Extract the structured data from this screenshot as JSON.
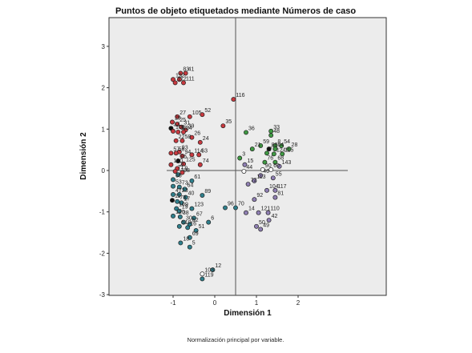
{
  "chart_data": {
    "type": "scatter",
    "title": "Puntos de objeto etiquetados mediante Números de caso",
    "xlabel": "Dimensión 1",
    "ylabel": "Dimensión 2",
    "footnote": "Normalización principal por variable.",
    "xlim": [
      -3,
      3
    ],
    "ylim": [
      -3,
      3.6
    ],
    "x_ticks": [
      -1,
      0,
      1,
      2
    ],
    "y_ticks": [
      -3,
      -2,
      -1,
      0,
      1,
      2,
      3
    ],
    "reference_lines": {
      "x": 0.5,
      "y": 0
    },
    "grid": false,
    "colors": {
      "plot_bg": "#ececec",
      "red": "#c8393f",
      "green": "#3f9a43",
      "teal": "#2f7f8c",
      "purple": "#8f7fb3",
      "hollow": "#ffffff",
      "black": "#111111"
    },
    "points": [
      {
        "label": "83",
        "x": -0.82,
        "y": 2.35,
        "color": "red"
      },
      {
        "label": "41",
        "x": -0.7,
        "y": 2.35,
        "color": "red"
      },
      {
        "label": "13",
        "x": -1.0,
        "y": 2.2,
        "color": "red"
      },
      {
        "label": "2",
        "x": -0.85,
        "y": 2.2,
        "color": "red"
      },
      {
        "label": "112",
        "x": -0.95,
        "y": 2.12,
        "color": "red"
      },
      {
        "label": "111",
        "x": -0.75,
        "y": 2.12,
        "color": "red"
      },
      {
        "label": "116",
        "x": 0.45,
        "y": 1.72,
        "color": "red"
      },
      {
        "label": "27",
        "x": -0.9,
        "y": 1.3,
        "color": "red"
      },
      {
        "label": "105",
        "x": -0.6,
        "y": 1.3,
        "color": "red"
      },
      {
        "label": "52",
        "x": -0.3,
        "y": 1.35,
        "color": "red"
      },
      {
        "label": "29",
        "x": -1.02,
        "y": 1.17,
        "color": "red"
      },
      {
        "label": "25",
        "x": -0.9,
        "y": 1.12,
        "color": "red"
      },
      {
        "label": "35",
        "x": 0.2,
        "y": 1.08,
        "color": "red"
      },
      {
        "label": "31",
        "x": -0.8,
        "y": 1.05,
        "color": "red"
      },
      {
        "label": "37",
        "x": -1.05,
        "y": 1.02,
        "color": "black"
      },
      {
        "label": "39",
        "x": -0.7,
        "y": 0.98,
        "color": "red"
      },
      {
        "label": "106",
        "x": -1.0,
        "y": 0.95,
        "color": "red"
      },
      {
        "label": "32",
        "x": -0.88,
        "y": 0.93,
        "color": "red"
      },
      {
        "label": "34",
        "x": -0.75,
        "y": 0.93,
        "color": "red"
      },
      {
        "label": "36",
        "x": 0.75,
        "y": 0.92,
        "color": "green"
      },
      {
        "label": "33",
        "x": 1.35,
        "y": 0.95,
        "color": "green"
      },
      {
        "label": "48",
        "x": 1.35,
        "y": 0.85,
        "color": "green"
      },
      {
        "label": "26",
        "x": -0.55,
        "y": 0.8,
        "color": "red"
      },
      {
        "label": "22",
        "x": -0.93,
        "y": 0.72,
        "color": "red"
      },
      {
        "label": "58",
        "x": -0.78,
        "y": 0.72,
        "color": "red"
      },
      {
        "label": "24",
        "x": -0.35,
        "y": 0.68,
        "color": "red"
      },
      {
        "label": "59",
        "x": 1.1,
        "y": 0.6,
        "color": "green"
      },
      {
        "label": "8",
        "x": 1.45,
        "y": 0.6,
        "color": "green"
      },
      {
        "label": "54",
        "x": 1.6,
        "y": 0.6,
        "color": "green"
      },
      {
        "label": "21",
        "x": 0.9,
        "y": 0.52,
        "color": "green"
      },
      {
        "label": "88",
        "x": 1.3,
        "y": 0.52,
        "color": "black"
      },
      {
        "label": "64",
        "x": 1.45,
        "y": 0.52,
        "color": "green"
      },
      {
        "label": "28",
        "x": 1.78,
        "y": 0.52,
        "color": "green"
      },
      {
        "label": "93",
        "x": -0.85,
        "y": 0.45,
        "color": "red"
      },
      {
        "label": "57",
        "x": -1.05,
        "y": 0.42,
        "color": "red"
      },
      {
        "label": "56",
        "x": -0.93,
        "y": 0.42,
        "color": "red"
      },
      {
        "label": "7",
        "x": 1.25,
        "y": 0.42,
        "color": "green"
      },
      {
        "label": "124",
        "x": 1.42,
        "y": 0.4,
        "color": "green"
      },
      {
        "label": "115",
        "x": 1.62,
        "y": 0.4,
        "color": "green"
      },
      {
        "label": "94",
        "x": -0.78,
        "y": 0.35,
        "color": "red"
      },
      {
        "label": "114",
        "x": -0.55,
        "y": 0.38,
        "color": "red"
      },
      {
        "label": "63",
        "x": -0.38,
        "y": 0.38,
        "color": "red"
      },
      {
        "label": "3",
        "x": 0.6,
        "y": 0.3,
        "color": "green"
      },
      {
        "label": "76",
        "x": 1.2,
        "y": 0.2,
        "color": "green"
      },
      {
        "label": "68",
        "x": 1.45,
        "y": 0.2,
        "color": "green"
      },
      {
        "label": "86",
        "x": -0.88,
        "y": 0.23,
        "color": "black"
      },
      {
        "label": "125",
        "x": -0.75,
        "y": 0.16,
        "color": "red"
      },
      {
        "label": "100",
        "x": -1.05,
        "y": 0.14,
        "color": "red"
      },
      {
        "label": "74",
        "x": -0.35,
        "y": 0.14,
        "color": "red"
      },
      {
        "label": "15",
        "x": 0.72,
        "y": 0.14,
        "color": "purple"
      },
      {
        "label": "143",
        "x": 1.55,
        "y": 0.1,
        "color": "purple"
      },
      {
        "label": "20",
        "x": -0.9,
        "y": 0.05,
        "color": "red"
      },
      {
        "label": "71",
        "x": -0.95,
        "y": -0.02,
        "color": "red"
      },
      {
        "label": "44",
        "x": 0.7,
        "y": -0.02,
        "color": "hollow"
      },
      {
        "label": "90",
        "x": 1.15,
        "y": 0.02,
        "color": "hollow"
      },
      {
        "label": "60",
        "x": 1.35,
        "y": 0.02,
        "color": "hollow"
      },
      {
        "label": "108",
        "x": -0.88,
        "y": -0.1,
        "color": "teal"
      },
      {
        "label": "9",
        "x": -0.78,
        "y": -0.05,
        "color": "red"
      },
      {
        "label": "46",
        "x": 1.1,
        "y": -0.12,
        "color": "purple"
      },
      {
        "label": "55",
        "x": 1.4,
        "y": -0.18,
        "color": "purple"
      },
      {
        "label": "65",
        "x": -1.0,
        "y": -0.22,
        "color": "teal"
      },
      {
        "label": "61",
        "x": -0.55,
        "y": -0.25,
        "color": "teal"
      },
      {
        "label": "113",
        "x": 0.95,
        "y": -0.25,
        "color": "purple"
      },
      {
        "label": "72",
        "x": 0.8,
        "y": -0.33,
        "color": "purple"
      },
      {
        "label": "53",
        "x": -1.0,
        "y": -0.38,
        "color": "teal"
      },
      {
        "label": "73",
        "x": -0.85,
        "y": -0.4,
        "color": "teal"
      },
      {
        "label": "64",
        "x": -0.72,
        "y": -0.45,
        "color": "teal"
      },
      {
        "label": "104",
        "x": 1.25,
        "y": -0.48,
        "color": "purple"
      },
      {
        "label": "117",
        "x": 1.45,
        "y": -0.48,
        "color": "purple"
      },
      {
        "label": "47",
        "x": -1.0,
        "y": -0.58,
        "color": "teal"
      },
      {
        "label": "23",
        "x": -0.85,
        "y": -0.58,
        "color": "teal"
      },
      {
        "label": "40",
        "x": -0.7,
        "y": -0.65,
        "color": "teal"
      },
      {
        "label": "89",
        "x": -0.3,
        "y": -0.6,
        "color": "teal"
      },
      {
        "label": "81",
        "x": 1.45,
        "y": -0.65,
        "color": "purple"
      },
      {
        "label": "92",
        "x": 0.95,
        "y": -0.7,
        "color": "purple"
      },
      {
        "label": "11",
        "x": -1.02,
        "y": -0.72,
        "color": "black"
      },
      {
        "label": "77",
        "x": -0.9,
        "y": -0.75,
        "color": "teal"
      },
      {
        "label": "17",
        "x": -0.8,
        "y": -0.78,
        "color": "teal"
      },
      {
        "label": "96",
        "x": 0.25,
        "y": -0.9,
        "color": "teal"
      },
      {
        "label": "70",
        "x": 0.5,
        "y": -0.9,
        "color": "teal"
      },
      {
        "label": "109",
        "x": -0.92,
        "y": -0.92,
        "color": "teal"
      },
      {
        "label": "123",
        "x": -0.55,
        "y": -0.92,
        "color": "teal"
      },
      {
        "label": "19",
        "x": -0.85,
        "y": -0.98,
        "color": "teal"
      },
      {
        "label": "14",
        "x": 0.75,
        "y": -1.02,
        "color": "purple"
      },
      {
        "label": "121",
        "x": 1.05,
        "y": -1.02,
        "color": "purple"
      },
      {
        "label": "110",
        "x": 1.28,
        "y": -1.02,
        "color": "purple"
      },
      {
        "label": "120",
        "x": -1.0,
        "y": -1.1,
        "color": "teal"
      },
      {
        "label": "38",
        "x": -0.83,
        "y": -1.12,
        "color": "teal"
      },
      {
        "label": "67",
        "x": -0.5,
        "y": -1.15,
        "color": "teal"
      },
      {
        "label": "42",
        "x": 1.3,
        "y": -1.2,
        "color": "purple"
      },
      {
        "label": "6",
        "x": -0.15,
        "y": -1.25,
        "color": "teal"
      },
      {
        "label": "30",
        "x": -0.75,
        "y": -1.25,
        "color": "teal"
      },
      {
        "label": "62",
        "x": -0.6,
        "y": -1.3,
        "color": "teal"
      },
      {
        "label": "510",
        "x": -0.85,
        "y": -1.35,
        "color": "teal"
      },
      {
        "label": "16",
        "x": -0.65,
        "y": -1.38,
        "color": "teal"
      },
      {
        "label": "51",
        "x": -0.45,
        "y": -1.45,
        "color": "teal"
      },
      {
        "label": "50",
        "x": 1.0,
        "y": -1.35,
        "color": "purple"
      },
      {
        "label": "49",
        "x": 1.1,
        "y": -1.42,
        "color": "purple"
      },
      {
        "label": "69",
        "x": -0.6,
        "y": -1.62,
        "color": "teal"
      },
      {
        "label": "18",
        "x": -0.82,
        "y": -1.75,
        "color": "teal"
      },
      {
        "label": "5",
        "x": -0.6,
        "y": -1.85,
        "color": "teal"
      },
      {
        "label": "12",
        "x": -0.05,
        "y": -2.4,
        "color": "teal"
      },
      {
        "label": "103",
        "x": -0.3,
        "y": -2.5,
        "color": "hollow"
      },
      {
        "label": "119",
        "x": -0.3,
        "y": -2.62,
        "color": "teal"
      }
    ]
  }
}
